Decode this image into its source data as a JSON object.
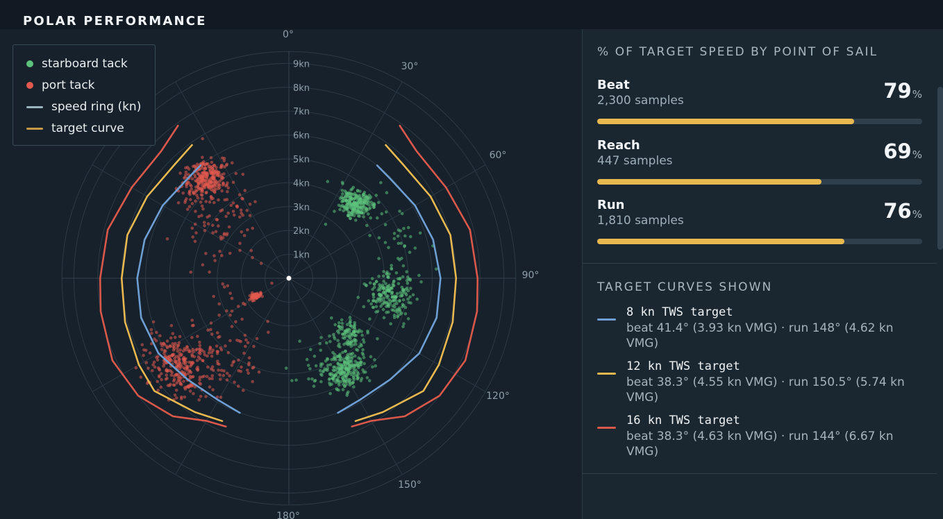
{
  "page": {
    "title": "POLAR PERFORMANCE"
  },
  "colors": {
    "starboard": "#5cc27c",
    "port": "#e2594f",
    "speed_ring": "#9bb4c0",
    "target_curve_legend": "#c99a45",
    "tws8": "#6e9fd4",
    "tws12": "#e9b84f",
    "tws16": "#d9584a",
    "bar": "#e9b84f"
  },
  "legend": {
    "items": [
      {
        "label": "starboard tack",
        "kind": "dot",
        "color": "#5cc27c"
      },
      {
        "label": "port tack",
        "kind": "dot",
        "color": "#e2594f"
      },
      {
        "label": "speed ring (kn)",
        "kind": "line",
        "color": "#9bb4c0"
      },
      {
        "label": "target curve",
        "kind": "line",
        "color": "#c99a45"
      }
    ]
  },
  "chart_data": {
    "type": "scatter",
    "coordinate_system": "polar",
    "angle_ticks": [
      "0°",
      "30°",
      "60°",
      "90°",
      "120°",
      "150°",
      "180°"
    ],
    "radial_ticks": [
      "1kn",
      "2kn",
      "3kn",
      "4kn",
      "5kn",
      "6kn",
      "7kn",
      "8kn",
      "9kn"
    ],
    "r_max_kn": 9.5,
    "series": [
      {
        "name": "starboard tack",
        "color": "#5cc27c",
        "clusters": [
          {
            "angle_deg": 42,
            "speed_kn": 4.2,
            "angle_sd": 5,
            "speed_sd": 0.35,
            "count": 230
          },
          {
            "angle_deg": 70,
            "speed_kn": 4.9,
            "angle_sd": 12,
            "speed_sd": 0.55,
            "count": 50
          },
          {
            "angle_deg": 100,
            "speed_kn": 4.3,
            "angle_sd": 6,
            "speed_sd": 0.45,
            "count": 190
          },
          {
            "angle_deg": 133,
            "speed_kn": 3.4,
            "angle_sd": 5,
            "speed_sd": 0.35,
            "count": 90
          },
          {
            "angle_deg": 148,
            "speed_kn": 4.5,
            "angle_sd": 6,
            "speed_sd": 0.4,
            "count": 230
          },
          {
            "angle_deg": 155,
            "speed_kn": 3.8,
            "angle_sd": 12,
            "speed_sd": 0.7,
            "count": 40
          }
        ]
      },
      {
        "name": "port tack",
        "color": "#e2594f",
        "clusters": [
          {
            "angle_deg": -40,
            "speed_kn": 5.5,
            "angle_sd": 5,
            "speed_sd": 0.4,
            "count": 260
          },
          {
            "angle_deg": -40,
            "speed_kn": 4.5,
            "angle_sd": 10,
            "speed_sd": 0.9,
            "count": 90
          },
          {
            "angle_deg": -65,
            "speed_kn": 3.4,
            "angle_sd": 12,
            "speed_sd": 0.9,
            "count": 25
          },
          {
            "angle_deg": -118,
            "speed_kn": 1.6,
            "angle_sd": 2,
            "speed_sd": 0.12,
            "count": 70
          },
          {
            "angle_deg": -128,
            "speed_kn": 6.0,
            "angle_sd": 7,
            "speed_sd": 0.55,
            "count": 260
          },
          {
            "angle_deg": -140,
            "speed_kn": 4.4,
            "angle_sd": 12,
            "speed_sd": 0.9,
            "count": 90
          },
          {
            "angle_deg": -115,
            "speed_kn": 3.2,
            "angle_sd": 15,
            "speed_sd": 1.0,
            "count": 25
          }
        ]
      }
    ],
    "target_curves": [
      {
        "name": "8 kn TWS target",
        "color": "#6e9fd4",
        "points": [
          [
            38,
            6.0
          ],
          [
            45,
            5.95
          ],
          [
            60,
            6.1
          ],
          [
            75,
            6.25
          ],
          [
            90,
            6.35
          ],
          [
            105,
            6.4
          ],
          [
            120,
            6.3
          ],
          [
            135,
            6.0
          ],
          [
            150,
            5.9
          ],
          [
            160,
            6.0
          ]
        ]
      },
      {
        "name": "12 kn TWS target",
        "color": "#e9b84f",
        "points": [
          [
            36,
            6.9
          ],
          [
            45,
            6.75
          ],
          [
            60,
            6.85
          ],
          [
            75,
            7.0
          ],
          [
            90,
            7.0
          ],
          [
            105,
            7.1
          ],
          [
            120,
            7.25
          ],
          [
            130,
            7.35
          ],
          [
            145,
            6.85
          ],
          [
            155,
            6.6
          ]
        ]
      },
      {
        "name": "16 kn TWS target",
        "color": "#d9584a",
        "points": [
          [
            36,
            7.9
          ],
          [
            45,
            7.55
          ],
          [
            60,
            7.6
          ],
          [
            75,
            7.85
          ],
          [
            90,
            7.9
          ],
          [
            100,
            8.0
          ],
          [
            115,
            8.15
          ],
          [
            128,
            8.0
          ],
          [
            140,
            7.55
          ],
          [
            150,
            6.9
          ],
          [
            157,
            6.75
          ]
        ]
      }
    ]
  },
  "performance": {
    "title": "% OF TARGET SPEED BY POINT OF SAIL",
    "pct_symbol": "%",
    "rows": [
      {
        "name": "Beat",
        "samples": "2,300 samples",
        "value": "79",
        "fraction": 0.79
      },
      {
        "name": "Reach",
        "samples": "447 samples",
        "value": "69",
        "fraction": 0.69
      },
      {
        "name": "Run",
        "samples": "1,810 samples",
        "value": "76",
        "fraction": 0.76
      }
    ]
  },
  "target_curves_section": {
    "title": "TARGET CURVES SHOWN",
    "items": [
      {
        "title": "8 kn TWS target",
        "detail": "beat 41.4° (3.93 kn VMG) · run 148° (4.62 kn VMG)",
        "color": "#6e9fd4"
      },
      {
        "title": "12 kn TWS target",
        "detail": "beat 38.3° (4.55 kn VMG) · run 150.5° (5.74 kn VMG)",
        "color": "#e9b84f"
      },
      {
        "title": "16 kn TWS target",
        "detail": "beat 38.3° (4.63 kn VMG) · run 144° (6.67 kn VMG)",
        "color": "#d9584a"
      }
    ]
  }
}
